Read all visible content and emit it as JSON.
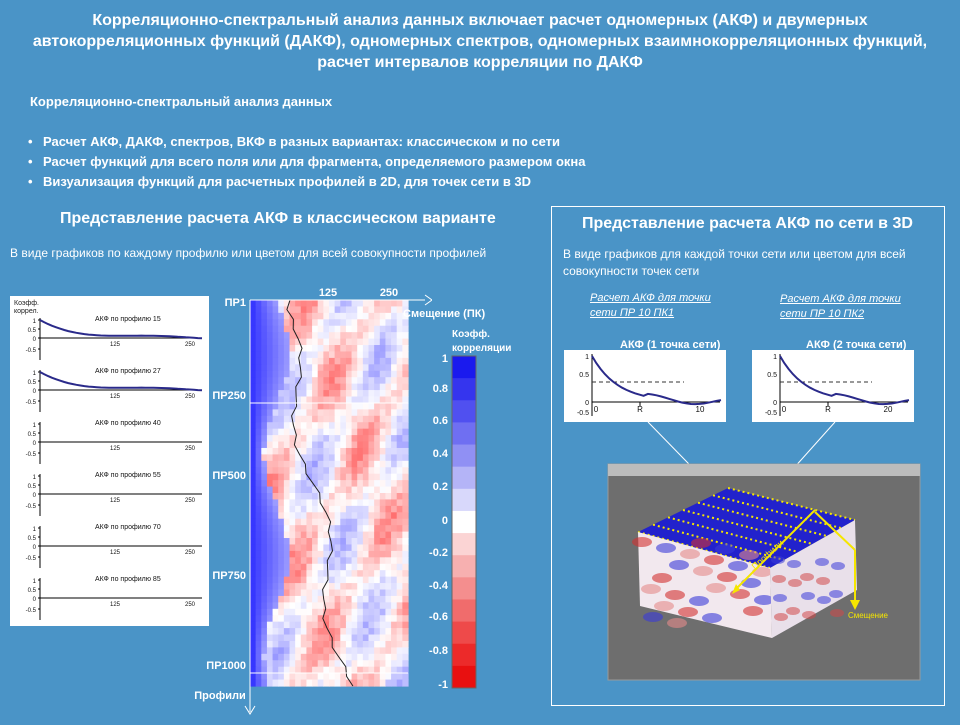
{
  "title": "Корреляционно-спектральный анализ данных включает расчет одномерных (АКФ) и двумерных автокорреляционных функций (ДАКФ), одномерных спектров, одномерных взаимнокорреляционных функций, расчет  интервалов корреляции по ДАКФ",
  "subheading": "Корреляционно-спектральный анализ данных",
  "bullets": [
    "Расчет АКФ, ДАКФ, спектров, ВКФ в разных вариантах: классическом и по сети",
    "Расчет функций для всего поля или для фрагмента, определяемого размером окна",
    "Визуализация функций для расчетных профилей в 2D, для  точек сети в 3D"
  ],
  "left_section": {
    "heading": "Представление расчета АКФ в классическом варианте",
    "description": "В виде графиков по каждому профилю или цветом для всей совокупности профилей",
    "plot_ylabel": "Коэфф. коррел.",
    "plot_titles": [
      "АКФ по профилю 15",
      "АКФ по профилю 27",
      "АКФ по профилю 40",
      "АКФ по профилю 55",
      "АКФ по профилю 70",
      "АКФ по профилю 85"
    ],
    "plot_yticks": [
      "1",
      "0.5",
      "0",
      "-0.5"
    ],
    "plot_xticks": [
      "125",
      "250"
    ]
  },
  "heatmap": {
    "top_ticks": [
      "125",
      "250"
    ],
    "x_axis_label": "Смещение (ПК)",
    "y_axis_label": "Профили",
    "profile_labels": [
      "ПР1",
      "ПР250",
      "ПР500",
      "ПР750",
      "ПР1000"
    ]
  },
  "colorbar": {
    "title": "Коэфф. корреляции",
    "ticks": [
      "1",
      "0.8",
      "0.6",
      "0.4",
      "0.2",
      "0",
      "-0.2",
      "-0.4",
      "-0.6",
      "-0.8",
      "-1"
    ],
    "colors": [
      "#1a1aee",
      "#3535ee",
      "#5050f0",
      "#6f6ff2",
      "#9090f4",
      "#b4b4f7",
      "#d8d8fb",
      "#ffffff",
      "#fbd4d4",
      "#f7b0b0",
      "#f48e8e",
      "#f06c6c",
      "#ee4a4a",
      "#ec2a2a",
      "#e81010"
    ]
  },
  "right_section": {
    "heading": "Представление расчета АКФ по сети в 3D",
    "description": "В виде графиков для каждой точки сети или цветом для всей совокупности точек сети",
    "link1": "Расчет АКФ для  точки сети  ПР 10 ПК1",
    "link2": "Расчет АКФ для точки сети  ПР 10 ПК2",
    "plot1_title": "АКФ (1 точка сети)",
    "plot2_title": "АКФ (2 точка сети)",
    "plot1_xticks": [
      "0",
      "R",
      "10"
    ],
    "plot2_xticks": [
      "0",
      "R",
      "20"
    ],
    "plot_yticks": [
      "1",
      "0.5",
      "0",
      "-0.5"
    ],
    "cube_label_profiles": "Профили",
    "cube_label_shift": "Смещение"
  },
  "colors": {
    "background": "#4a94c7",
    "curve": "#2a2a8a",
    "accent_yellow": "#f5e600",
    "positive": "#1a1aee",
    "negative": "#e81010"
  }
}
